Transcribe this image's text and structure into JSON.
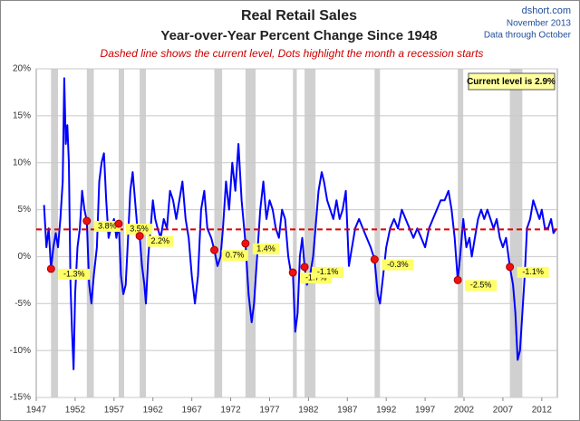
{
  "chart_data": {
    "type": "line",
    "title": "Real Retail Sales",
    "subtitle": "Year-over-Year Percent Change Since 1948",
    "note": "Dashed line shows the current level, Dots highlight the month a recession starts",
    "source": [
      "dshort.com",
      "November 2013",
      "Data through October"
    ],
    "color": "#0000ff",
    "x": [
      1948.0,
      1948.3,
      1948.6,
      1948.9,
      1949.2,
      1949.5,
      1949.8,
      1950.1,
      1950.4,
      1950.6,
      1950.8,
      1951.0,
      1951.2,
      1951.4,
      1951.6,
      1951.8,
      1952.0,
      1952.3,
      1952.6,
      1952.9,
      1953.2,
      1953.5,
      1953.8,
      1954.1,
      1954.4,
      1954.8,
      1955.1,
      1955.4,
      1955.7,
      1956.0,
      1956.3,
      1956.6,
      1957.0,
      1957.3,
      1957.6,
      1957.9,
      1958.2,
      1958.5,
      1958.8,
      1959.1,
      1959.4,
      1959.7,
      1960.0,
      1960.3,
      1960.6,
      1960.9,
      1961.1,
      1961.4,
      1961.7,
      1962.0,
      1962.3,
      1962.6,
      1963.0,
      1963.4,
      1963.8,
      1964.2,
      1964.6,
      1965.0,
      1965.4,
      1965.8,
      1966.2,
      1966.6,
      1967.0,
      1967.4,
      1967.8,
      1968.2,
      1968.6,
      1969.0,
      1969.5,
      1969.9,
      1970.3,
      1970.7,
      1971.0,
      1971.4,
      1971.8,
      1972.2,
      1972.6,
      1973.0,
      1973.4,
      1973.9,
      1974.3,
      1974.7,
      1975.0,
      1975.4,
      1975.8,
      1976.2,
      1976.6,
      1977.0,
      1977.4,
      1977.8,
      1978.2,
      1978.6,
      1979.0,
      1979.4,
      1979.8,
      1980.0,
      1980.3,
      1980.6,
      1980.9,
      1981.2,
      1981.5,
      1981.8,
      1982.2,
      1982.6,
      1982.9,
      1983.3,
      1983.7,
      1984.0,
      1984.4,
      1984.8,
      1985.2,
      1985.6,
      1986.0,
      1986.4,
      1986.8,
      1987.2,
      1987.6,
      1988.0,
      1988.5,
      1989.0,
      1989.5,
      1990.0,
      1990.5,
      1990.9,
      1991.2,
      1991.6,
      1992.0,
      1992.5,
      1993.0,
      1993.5,
      1994.0,
      1994.5,
      1995.0,
      1995.5,
      1996.0,
      1996.5,
      1997.0,
      1997.5,
      1998.0,
      1998.5,
      1999.0,
      1999.5,
      2000.0,
      2000.4,
      2000.8,
      2001.2,
      2001.5,
      2001.9,
      2002.3,
      2002.7,
      2003.0,
      2003.4,
      2003.8,
      2004.2,
      2004.6,
      2005.0,
      2005.4,
      2005.8,
      2006.2,
      2006.6,
      2007.0,
      2007.4,
      2007.9,
      2008.3,
      2008.6,
      2008.9,
      2009.2,
      2009.5,
      2009.8,
      2010.1,
      2010.5,
      2010.9,
      2011.3,
      2011.7,
      2012.0,
      2012.4,
      2012.8,
      2013.2,
      2013.5,
      2013.8
    ],
    "values": [
      5.5,
      1,
      3,
      -1.3,
      1,
      2.5,
      1,
      4,
      8,
      19,
      12,
      14,
      10,
      -3,
      -8,
      -12,
      -4,
      1,
      3,
      7,
      5,
      3.8,
      -3,
      -5,
      -2,
      1,
      8,
      10,
      11,
      6,
      2,
      3,
      4,
      2,
      3.5,
      -2,
      -4,
      -3,
      2,
      7,
      9,
      6,
      3,
      2.2,
      -1,
      -3,
      -5,
      0,
      3,
      6,
      4,
      3,
      2,
      4,
      3,
      7,
      6,
      4,
      6,
      8,
      4,
      2,
      -2,
      -5,
      -2,
      5,
      7,
      3,
      2,
      0.7,
      -1,
      0,
      3,
      8,
      5,
      10,
      7,
      12,
      6,
      1.4,
      -4,
      -7,
      -5,
      0,
      5,
      8,
      4,
      6,
      5,
      3,
      2,
      5,
      4,
      0,
      -2,
      -1.7,
      -8,
      -6,
      0,
      2,
      -1.1,
      -3,
      -2,
      0,
      3,
      7,
      9,
      8,
      6,
      5,
      4,
      6,
      4,
      5,
      7,
      -1,
      1,
      3,
      4,
      3,
      2,
      1,
      -0.3,
      -4,
      -5,
      -2,
      1,
      3,
      4,
      3,
      5,
      4,
      3,
      2,
      3,
      2,
      1,
      3,
      4,
      5,
      6,
      6,
      7,
      5,
      2,
      -2.5,
      0,
      4,
      1,
      2,
      0,
      2,
      4,
      5,
      4,
      5,
      4,
      3,
      4,
      2,
      1,
      2,
      -1.1,
      -3,
      -6,
      -11,
      -10,
      -6,
      -2,
      3,
      4,
      6,
      5,
      4,
      5,
      3,
      3,
      4,
      2.5,
      2.9
    ],
    "recession_start": [
      1948.9,
      1953.5,
      1957.6,
      1960.3,
      1969.9,
      1973.9,
      1980.0,
      1981.5,
      1990.5,
      2001.2,
      2007.9
    ],
    "recession_end": [
      1949.8,
      1954.4,
      1958.3,
      1961.1,
      1970.9,
      1975.2,
      1980.5,
      1982.9,
      1991.2,
      2001.9,
      2009.5
    ],
    "recession_values": [
      -1.3,
      3.8,
      3.5,
      2.2,
      0.7,
      1.4,
      -1.7,
      -1.1,
      -0.3,
      -2.5,
      -1.1
    ],
    "recession_value_labels": [
      "-1.3%",
      "3.8%",
      "3.5%",
      "2.2%",
      "0.7%",
      "1.4%",
      "-1.7%",
      "-1.1%",
      "-0.3%",
      "-2.5%",
      "-1.1%"
    ],
    "current_level": 2.9,
    "current_label": "Current level is 2.9%",
    "xlim": [
      1947,
      2014
    ],
    "xticks": [
      1947,
      1952,
      1957,
      1962,
      1967,
      1972,
      1977,
      1982,
      1987,
      1992,
      1997,
      2002,
      2007,
      2012
    ],
    "ylim": [
      -15,
      20
    ],
    "yticks": [
      {
        "value": -15,
        "label": "-15%"
      },
      {
        "value": -10,
        "label": "-10%"
      },
      {
        "value": -5,
        "label": "-5%"
      },
      {
        "value": 0,
        "label": "0%"
      },
      {
        "value": 5,
        "label": "5%"
      },
      {
        "value": 10,
        "label": "10%"
      },
      {
        "value": 15,
        "label": "15%"
      },
      {
        "value": 20,
        "label": "20%"
      }
    ],
    "grid": true
  }
}
